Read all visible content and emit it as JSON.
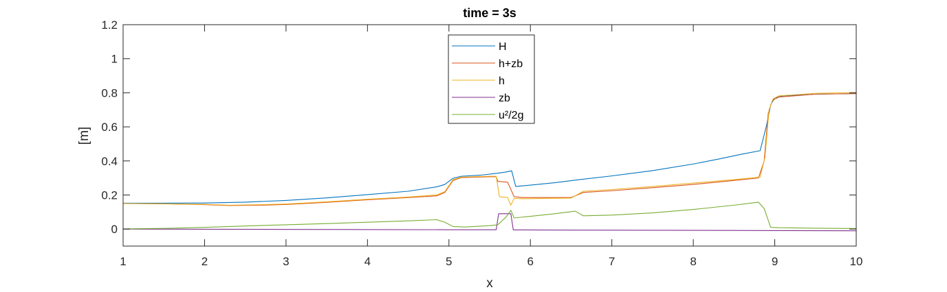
{
  "chart_data": {
    "type": "line",
    "title": "time = 3s",
    "xlabel": "x",
    "ylabel": "[m]",
    "xlim": [
      1,
      10
    ],
    "ylim": [
      -0.1,
      1.2
    ],
    "xticks": [
      1,
      2,
      3,
      4,
      5,
      6,
      7,
      8,
      9,
      10
    ],
    "yticks": [
      0,
      0.2,
      0.4,
      0.6,
      0.8,
      1,
      1.2
    ],
    "xtick_labels": [
      "1",
      "2",
      "3",
      "4",
      "5",
      "6",
      "7",
      "8",
      "9",
      "10"
    ],
    "ytick_labels": [
      "0",
      "0.2",
      "0.4",
      "0.6",
      "0.8",
      "1",
      "1.2"
    ],
    "grid": false,
    "legend_position": "top-center",
    "series": [
      {
        "name": "H",
        "color": "#0072BD",
        "points": [
          [
            1.0,
            0.152
          ],
          [
            1.5,
            0.152
          ],
          [
            2.0,
            0.153
          ],
          [
            2.5,
            0.158
          ],
          [
            3.0,
            0.168
          ],
          [
            3.5,
            0.183
          ],
          [
            4.0,
            0.202
          ],
          [
            4.5,
            0.222
          ],
          [
            4.85,
            0.248
          ],
          [
            4.95,
            0.262
          ],
          [
            5.05,
            0.298
          ],
          [
            5.15,
            0.31
          ],
          [
            5.4,
            0.317
          ],
          [
            5.6,
            0.328
          ],
          [
            5.7,
            0.335
          ],
          [
            5.77,
            0.342
          ],
          [
            5.82,
            0.25
          ],
          [
            6.0,
            0.258
          ],
          [
            6.3,
            0.272
          ],
          [
            6.6,
            0.29
          ],
          [
            7.0,
            0.312
          ],
          [
            7.5,
            0.343
          ],
          [
            8.0,
            0.382
          ],
          [
            8.3,
            0.41
          ],
          [
            8.6,
            0.44
          ],
          [
            8.82,
            0.46
          ],
          [
            8.9,
            0.61
          ],
          [
            8.95,
            0.73
          ],
          [
            9.0,
            0.77
          ],
          [
            9.1,
            0.782
          ],
          [
            9.5,
            0.792
          ],
          [
            10.0,
            0.795
          ]
        ]
      },
      {
        "name": "h+zb",
        "color": "#D95319",
        "points": [
          [
            1.0,
            0.15
          ],
          [
            1.5,
            0.148
          ],
          [
            2.0,
            0.143
          ],
          [
            2.3,
            0.138
          ],
          [
            2.7,
            0.14
          ],
          [
            3.0,
            0.144
          ],
          [
            3.5,
            0.157
          ],
          [
            4.0,
            0.172
          ],
          [
            4.5,
            0.185
          ],
          [
            4.85,
            0.195
          ],
          [
            4.95,
            0.215
          ],
          [
            5.05,
            0.285
          ],
          [
            5.15,
            0.302
          ],
          [
            5.5,
            0.307
          ],
          [
            5.58,
            0.307
          ],
          [
            5.6,
            0.28
          ],
          [
            5.72,
            0.275
          ],
          [
            5.8,
            0.19
          ],
          [
            5.9,
            0.185
          ],
          [
            6.2,
            0.185
          ],
          [
            6.5,
            0.185
          ],
          [
            6.65,
            0.215
          ],
          [
            7.0,
            0.225
          ],
          [
            7.5,
            0.243
          ],
          [
            8.0,
            0.262
          ],
          [
            8.5,
            0.285
          ],
          [
            8.8,
            0.3
          ],
          [
            8.87,
            0.4
          ],
          [
            8.92,
            0.68
          ],
          [
            8.97,
            0.755
          ],
          [
            9.05,
            0.775
          ],
          [
            9.5,
            0.792
          ],
          [
            10.0,
            0.795
          ]
        ]
      },
      {
        "name": "h",
        "color": "#EDB120",
        "points": [
          [
            1.0,
            0.15
          ],
          [
            1.5,
            0.148
          ],
          [
            2.0,
            0.145
          ],
          [
            2.3,
            0.14
          ],
          [
            2.7,
            0.143
          ],
          [
            3.0,
            0.147
          ],
          [
            3.5,
            0.16
          ],
          [
            4.0,
            0.175
          ],
          [
            4.5,
            0.188
          ],
          [
            4.85,
            0.2
          ],
          [
            4.95,
            0.22
          ],
          [
            5.05,
            0.29
          ],
          [
            5.15,
            0.305
          ],
          [
            5.5,
            0.31
          ],
          [
            5.58,
            0.31
          ],
          [
            5.62,
            0.19
          ],
          [
            5.72,
            0.185
          ],
          [
            5.76,
            0.14
          ],
          [
            5.8,
            0.18
          ],
          [
            5.9,
            0.178
          ],
          [
            6.2,
            0.18
          ],
          [
            6.5,
            0.182
          ],
          [
            6.65,
            0.222
          ],
          [
            7.0,
            0.232
          ],
          [
            7.5,
            0.25
          ],
          [
            8.0,
            0.27
          ],
          [
            8.5,
            0.29
          ],
          [
            8.82,
            0.305
          ],
          [
            8.88,
            0.42
          ],
          [
            8.93,
            0.7
          ],
          [
            8.98,
            0.765
          ],
          [
            9.05,
            0.782
          ],
          [
            9.5,
            0.797
          ],
          [
            10.0,
            0.802
          ]
        ]
      },
      {
        "name": "zb",
        "color": "#7E2F8E",
        "points": [
          [
            1.0,
            0.0
          ],
          [
            2.0,
            -0.001
          ],
          [
            3.0,
            -0.002
          ],
          [
            4.0,
            -0.003
          ],
          [
            5.0,
            -0.004
          ],
          [
            5.58,
            -0.004
          ],
          [
            5.61,
            0.09
          ],
          [
            5.76,
            0.09
          ],
          [
            5.79,
            -0.005
          ],
          [
            6.5,
            -0.006
          ],
          [
            7.5,
            -0.007
          ],
          [
            8.5,
            -0.008
          ],
          [
            9.0,
            -0.009
          ],
          [
            10.0,
            -0.01
          ]
        ]
      },
      {
        "name": "u²/2g",
        "color": "#77AC30",
        "points": [
          [
            1.0,
            0.001
          ],
          [
            1.5,
            0.004
          ],
          [
            2.0,
            0.01
          ],
          [
            2.5,
            0.018
          ],
          [
            3.0,
            0.025
          ],
          [
            3.5,
            0.032
          ],
          [
            4.0,
            0.04
          ],
          [
            4.5,
            0.048
          ],
          [
            4.85,
            0.055
          ],
          [
            4.95,
            0.04
          ],
          [
            5.05,
            0.015
          ],
          [
            5.2,
            0.012
          ],
          [
            5.5,
            0.02
          ],
          [
            5.6,
            0.025
          ],
          [
            5.7,
            0.07
          ],
          [
            5.76,
            0.11
          ],
          [
            5.8,
            0.065
          ],
          [
            6.0,
            0.075
          ],
          [
            6.3,
            0.09
          ],
          [
            6.55,
            0.105
          ],
          [
            6.65,
            0.078
          ],
          [
            7.0,
            0.082
          ],
          [
            7.5,
            0.095
          ],
          [
            8.0,
            0.115
          ],
          [
            8.5,
            0.14
          ],
          [
            8.8,
            0.158
          ],
          [
            8.87,
            0.12
          ],
          [
            8.95,
            0.01
          ],
          [
            9.05,
            0.008
          ],
          [
            9.5,
            0.005
          ],
          [
            10.0,
            0.003
          ]
        ]
      }
    ]
  }
}
